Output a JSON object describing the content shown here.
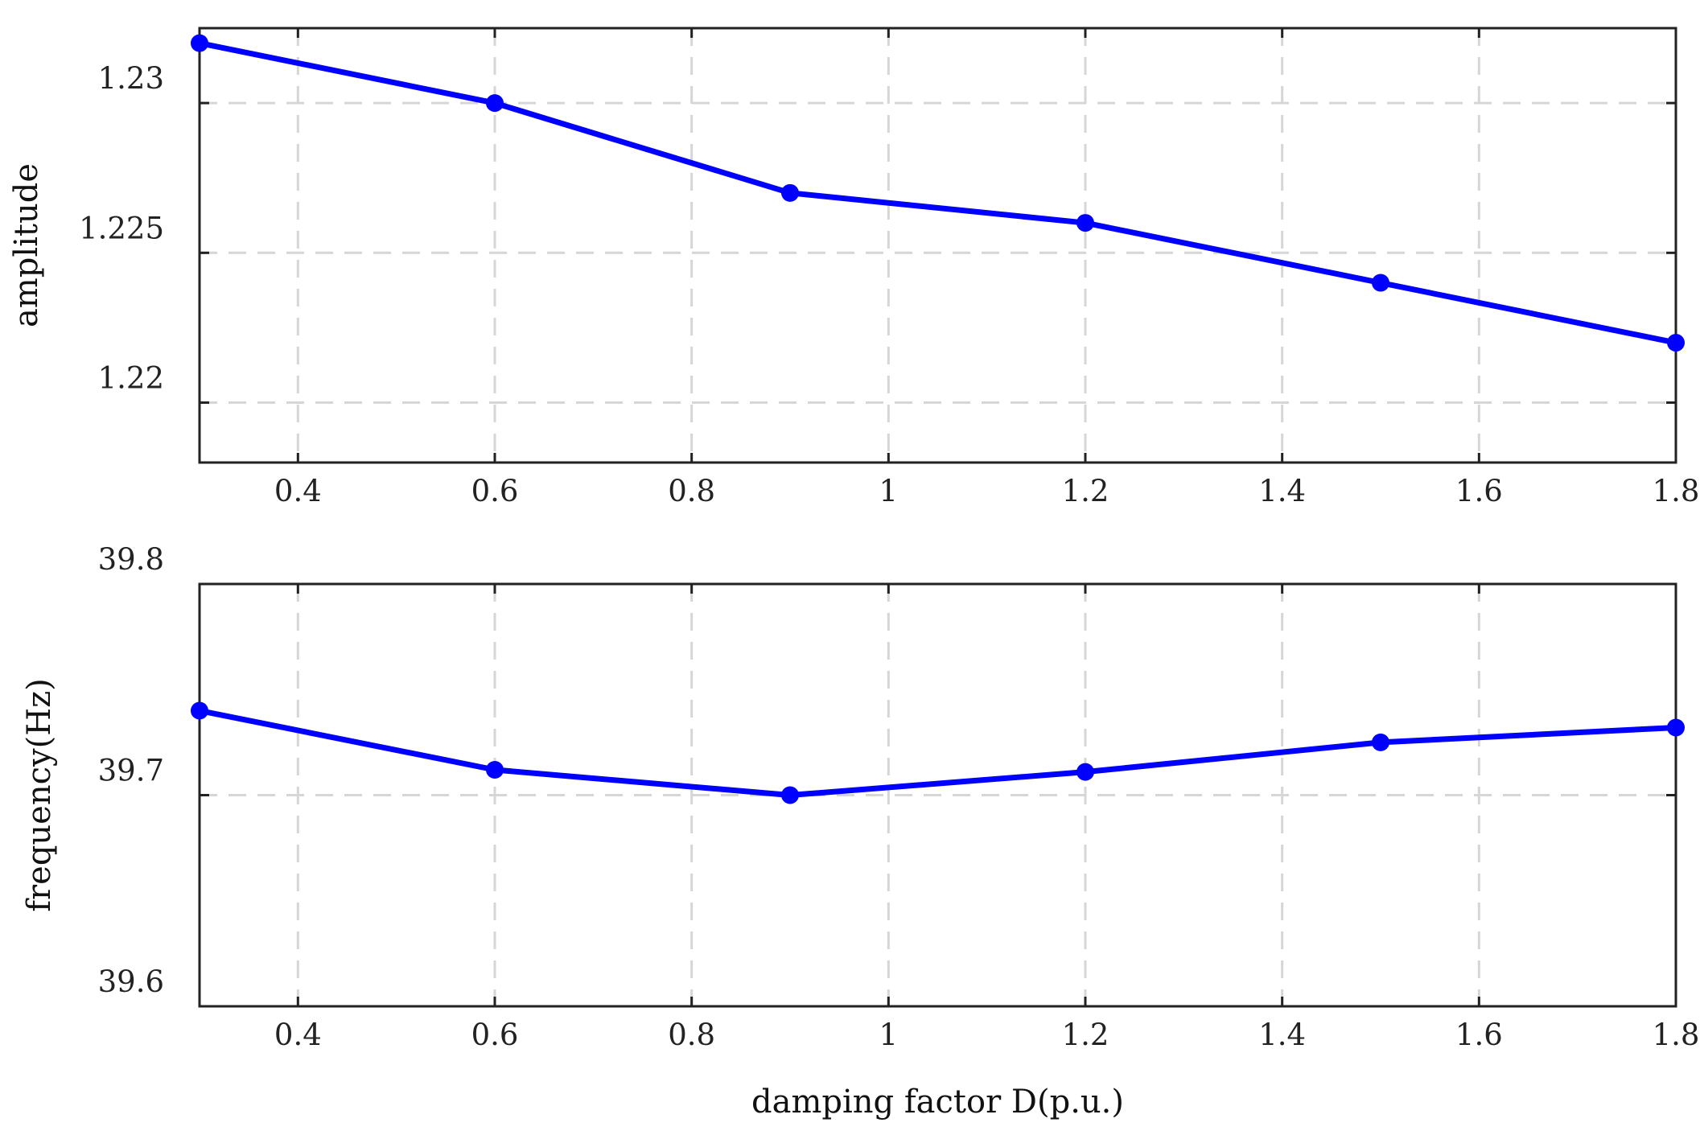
{
  "chart_data": [
    {
      "type": "line",
      "title": "",
      "xlabel": "",
      "ylabel": "amplitude",
      "xlim": [
        0.3,
        1.8
      ],
      "ylim": [
        1.218,
        1.2325
      ],
      "xticks": [
        0.4,
        0.6,
        0.8,
        1.0,
        1.2,
        1.4,
        1.6,
        1.8
      ],
      "xtick_labels": [
        "0.4",
        "0.6",
        "0.8",
        "1",
        "1.2",
        "1.4",
        "1.6",
        "1.8"
      ],
      "yticks": [
        1.22,
        1.225,
        1.23
      ],
      "ytick_labels": [
        "1.22",
        "1.225",
        "1.23"
      ],
      "grid": true,
      "color": "#0000ff",
      "marker": "circle",
      "series": [
        {
          "x": [
            0.3,
            0.6,
            0.9,
            1.2,
            1.5,
            1.8
          ],
          "values": [
            1.232,
            1.23,
            1.227,
            1.226,
            1.224,
            1.222
          ]
        }
      ]
    },
    {
      "type": "line",
      "title": "",
      "xlabel": "damping factor D(p.u.)",
      "ylabel": "frequency(Hz)",
      "xlim": [
        0.3,
        1.8
      ],
      "ylim": [
        39.6,
        39.8
      ],
      "xticks": [
        0.4,
        0.6,
        0.8,
        1.0,
        1.2,
        1.4,
        1.6,
        1.8
      ],
      "xtick_labels": [
        "0.4",
        "0.6",
        "0.8",
        "1",
        "1.2",
        "1.4",
        "1.6",
        "1.8"
      ],
      "yticks": [
        39.6,
        39.7,
        39.8
      ],
      "ytick_labels": [
        "39.6",
        "39.7",
        "39.8"
      ],
      "grid": true,
      "color": "#0000ff",
      "marker": "circle",
      "series": [
        {
          "x": [
            0.3,
            0.6,
            0.9,
            1.2,
            1.5,
            1.8
          ],
          "values": [
            39.74,
            39.712,
            39.7,
            39.711,
            39.725,
            39.732
          ]
        }
      ]
    }
  ]
}
